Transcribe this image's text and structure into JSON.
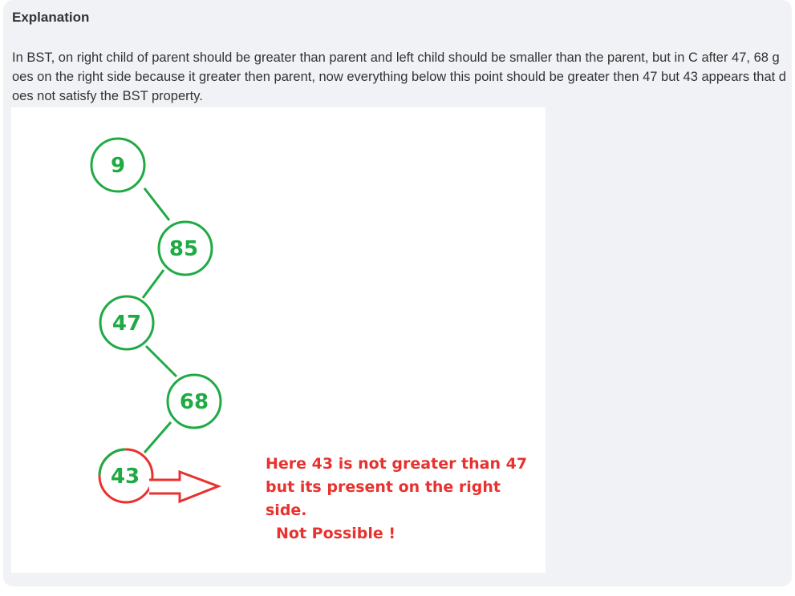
{
  "heading": "Explanation",
  "explanation": "In BST, on right child of parent should be greater than parent and left child should be smaller than the parent, but in C after 47, 68 goes on the right side because it greater then parent, now everything below this point should be greater then 47 but 43 appears that does not satisfy the BST property.",
  "diagram": {
    "nodes": [
      {
        "label": "9"
      },
      {
        "label": "85"
      },
      {
        "label": "47"
      },
      {
        "label": "68"
      },
      {
        "label": "43"
      }
    ],
    "note_lines": [
      "Here 43 is not greater than 47",
      "but its present on the right",
      "side.",
      "Not Possible !"
    ],
    "colors": {
      "node": "#1faa44",
      "highlight": "#e8322f"
    }
  }
}
